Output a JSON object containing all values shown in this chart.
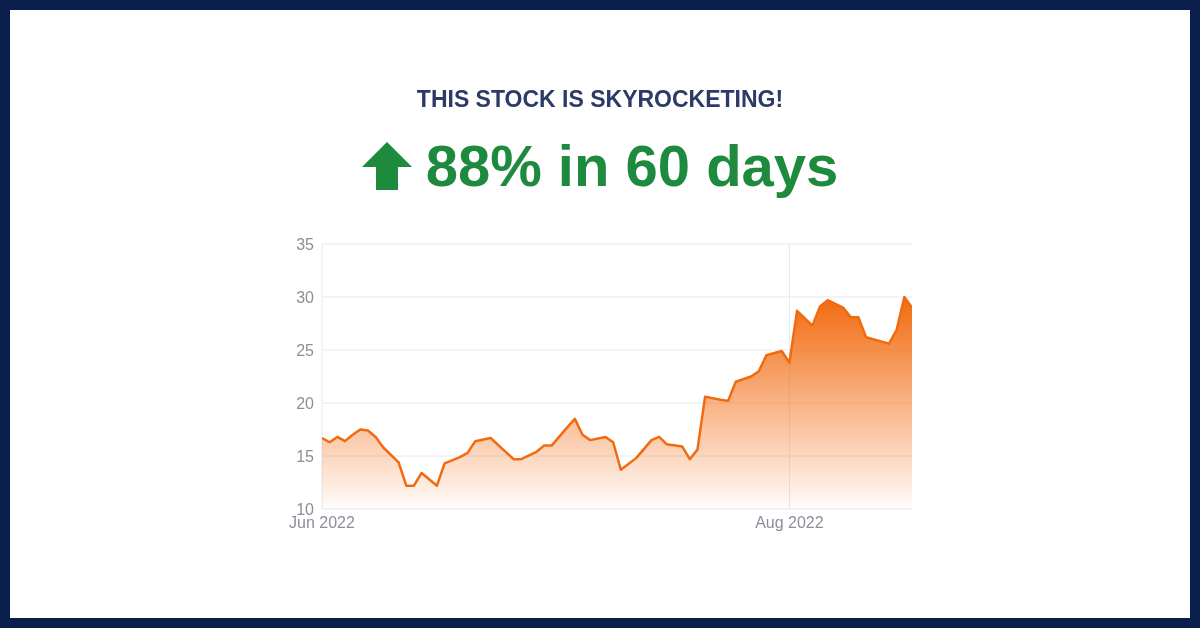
{
  "chart_data": {
    "type": "area",
    "title": "THIS STOCK IS SKYROCKETING!",
    "subtitle": "88% in 60 days",
    "x": [
      "2022-06-01",
      "2022-06-02",
      "2022-06-03",
      "2022-06-04",
      "2022-06-05",
      "2022-06-06",
      "2022-06-07",
      "2022-06-08",
      "2022-06-09",
      "2022-06-11",
      "2022-06-12",
      "2022-06-13",
      "2022-06-14",
      "2022-06-16",
      "2022-06-17",
      "2022-06-19",
      "2022-06-20",
      "2022-06-21",
      "2022-06-23",
      "2022-06-26",
      "2022-06-27",
      "2022-06-29",
      "2022-06-30",
      "2022-07-01",
      "2022-07-03",
      "2022-07-04",
      "2022-07-05",
      "2022-07-06",
      "2022-07-08",
      "2022-07-09",
      "2022-07-10",
      "2022-07-12",
      "2022-07-14",
      "2022-07-15",
      "2022-07-16",
      "2022-07-18",
      "2022-07-19",
      "2022-07-20",
      "2022-07-21",
      "2022-07-23",
      "2022-07-24",
      "2022-07-25",
      "2022-07-27",
      "2022-07-28",
      "2022-07-29",
      "2022-07-31",
      "2022-08-01",
      "2022-08-02",
      "2022-08-04",
      "2022-08-05",
      "2022-08-06",
      "2022-08-08",
      "2022-08-09",
      "2022-08-10",
      "2022-08-11",
      "2022-08-14",
      "2022-08-15",
      "2022-08-16",
      "2022-08-17"
    ],
    "series": [
      {
        "color": "#f26a0f",
        "values": [
          16.7,
          16.3,
          16.8,
          16.4,
          17.0,
          17.5,
          17.4,
          16.8,
          15.8,
          14.4,
          12.2,
          12.2,
          13.4,
          12.2,
          14.3,
          14.9,
          15.3,
          16.4,
          16.7,
          14.7,
          14.7,
          15.4,
          16.0,
          16.0,
          17.7,
          18.5,
          17.0,
          16.5,
          16.8,
          16.3,
          13.7,
          14.8,
          16.5,
          16.8,
          16.1,
          15.9,
          14.7,
          15.6,
          20.6,
          20.3,
          20.2,
          22.0,
          22.5,
          23.0,
          24.5,
          24.9,
          23.8,
          28.7,
          27.3,
          29.1,
          29.7,
          29.0,
          28.1,
          28.1,
          26.2,
          25.6,
          26.9,
          30.0,
          29.0
        ]
      }
    ],
    "xlim": [
      "2022-06-01",
      "2022-08-17"
    ],
    "xticks": [
      {
        "value": "2022-06-01",
        "label": "Jun 2022"
      },
      {
        "value": "2022-08-01",
        "label": "Aug 2022"
      }
    ],
    "ylim": [
      10,
      35
    ],
    "yticks": [
      10,
      15,
      20,
      25,
      30,
      35
    ],
    "grid": true
  }
}
